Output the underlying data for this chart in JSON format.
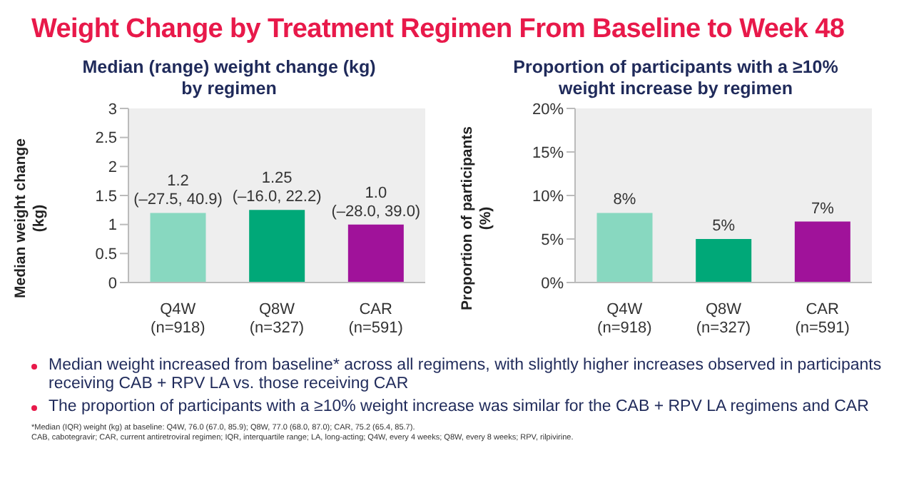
{
  "chart_data": [
    {
      "type": "bar",
      "title": "Weight Change by Treatment Regimen From Baseline to Week 48",
      "subtitle": "Median (range) weight change (kg)\nby regimen",
      "ylabel": "Median weight change\n(kg)",
      "categories": [
        "Q4W\n(n=918)",
        "Q8W\n(n=327)",
        "CAR\n(n=591)"
      ],
      "values": [
        1.2,
        1.25,
        1.0
      ],
      "colors": [
        "#88d8c0",
        "#00a878",
        "#a0129a"
      ],
      "value_labels": [
        "1.2\n(–27.5, 40.9)",
        "1.25\n(–16.0, 22.2)",
        "1.0\n(–28.0, 39.0)"
      ],
      "ylim": [
        0,
        3
      ],
      "yticks": [
        0,
        0.5,
        1,
        1.5,
        2,
        2.5,
        3
      ],
      "grid": false,
      "legend": false,
      "annotations": [
        "Median weight increased from baseline* across all regimens, with slightly higher increases observed in participants receiving CAB + RPV LA vs. those receiving CAR",
        "The proportion of participants with a ≥10% weight increase was similar for the CAB + RPV LA regimens and CAR",
        "*Median (IQR) weight (kg) at baseline: Q4W, 76.0 (67.0, 85.9); Q8W, 77.0 (68.0, 87.0); CAR, 75.2 (65.4, 85.7).",
        "CAB, cabotegravir; CAR, current antiretroviral regimen; IQR, interquartile range; LA, long-acting; Q4W, every 4 weeks; Q8W, every 8 weeks; RPV, rilpivirine."
      ]
    },
    {
      "type": "bar",
      "title": "Proportion of participants with a ≥10%\nweight increase by regimen",
      "ylabel": "Proportion of participants\n(%)",
      "categories": [
        "Q4W\n(n=918)",
        "Q8W\n(n=327)",
        "CAR\n(n=591)"
      ],
      "values": [
        8,
        5,
        7
      ],
      "colors": [
        "#88d8c0",
        "#00a878",
        "#a0129a"
      ],
      "value_labels": [
        "8%",
        "5%",
        "7%"
      ],
      "ylim": [
        0,
        20
      ],
      "yticks": [
        {
          "value": 0,
          "label": "0%"
        },
        {
          "value": 5,
          "label": "5%"
        },
        {
          "value": 10,
          "label": "10%"
        },
        {
          "value": 15,
          "label": "15%"
        },
        {
          "value": 20,
          "label": "20%"
        }
      ],
      "grid": false,
      "legend": false
    }
  ]
}
